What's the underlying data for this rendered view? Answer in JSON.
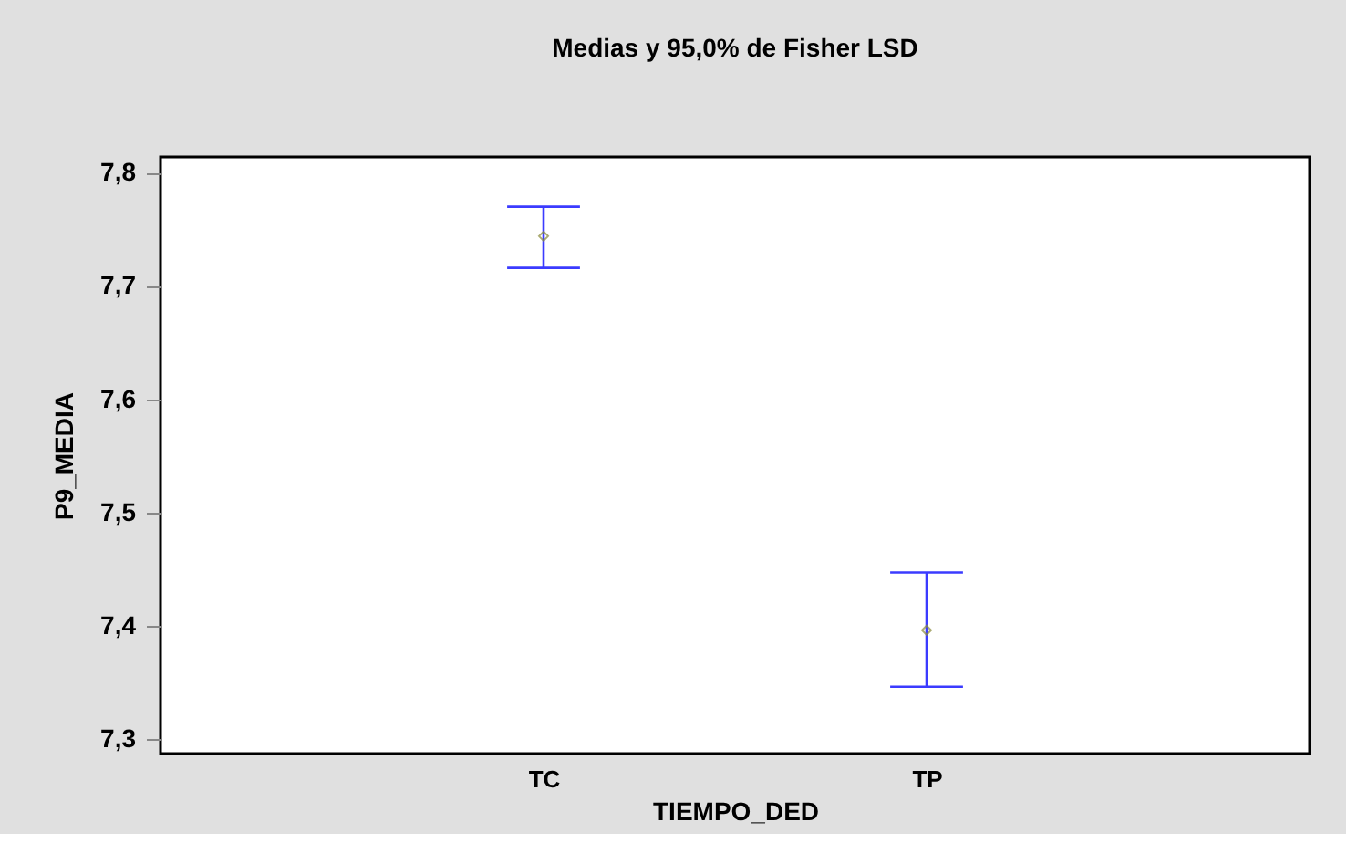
{
  "chart_data": {
    "type": "scatter",
    "title": "Medias y 95,0% de Fisher LSD",
    "xlabel": "TIEMPO_DED",
    "ylabel": "P9_MEDIA",
    "categories": [
      "TC",
      "TP"
    ],
    "values": [
      7.744,
      7.396
    ],
    "errors": [
      [
        7.716,
        7.77
      ],
      [
        7.346,
        7.447
      ]
    ],
    "colors": [
      "#8a8a3a",
      "#8a8a3a"
    ],
    "ylim": [
      7.287,
      7.814
    ],
    "yticks": [
      {
        "value": 7.3,
        "label": "7,3"
      },
      {
        "value": 7.4,
        "label": "7,4"
      },
      {
        "value": 7.5,
        "label": "7,5"
      },
      {
        "value": 7.6,
        "label": "7,6"
      },
      {
        "value": 7.7,
        "label": "7,7"
      },
      {
        "value": 7.8,
        "label": "7,8"
      }
    ],
    "marker": "diamond",
    "grid": false
  }
}
